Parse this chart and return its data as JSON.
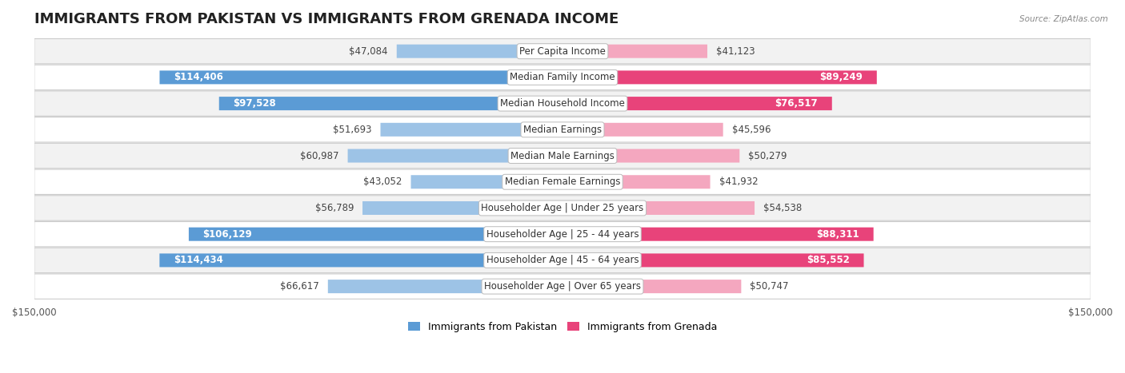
{
  "title": "IMMIGRANTS FROM PAKISTAN VS IMMIGRANTS FROM GRENADA INCOME",
  "source": "Source: ZipAtlas.com",
  "categories": [
    "Per Capita Income",
    "Median Family Income",
    "Median Household Income",
    "Median Earnings",
    "Median Male Earnings",
    "Median Female Earnings",
    "Householder Age | Under 25 years",
    "Householder Age | 25 - 44 years",
    "Householder Age | 45 - 64 years",
    "Householder Age | Over 65 years"
  ],
  "pakistan_values": [
    47084,
    114406,
    97528,
    51693,
    60987,
    43052,
    56789,
    106129,
    114434,
    66617
  ],
  "grenada_values": [
    41123,
    89249,
    76517,
    45596,
    50279,
    41932,
    54538,
    88311,
    85552,
    50747
  ],
  "pakistan_color_strong": "#5b9bd5",
  "pakistan_color_light": "#9dc3e6",
  "grenada_color_strong": "#e8437a",
  "grenada_color_light": "#f4a7bf",
  "pakistan_labels": [
    "$47,084",
    "$114,406",
    "$97,528",
    "$51,693",
    "$60,987",
    "$43,052",
    "$56,789",
    "$106,129",
    "$114,434",
    "$66,617"
  ],
  "grenada_labels": [
    "$41,123",
    "$89,249",
    "$76,517",
    "$45,596",
    "$50,279",
    "$41,932",
    "$54,538",
    "$88,311",
    "$85,552",
    "$50,747"
  ],
  "max_value": 150000,
  "legend_pakistan": "Immigrants from Pakistan",
  "legend_grenada": "Immigrants from Grenada",
  "background_color": "#ffffff",
  "row_bg_even": "#f2f2f2",
  "row_bg_odd": "#ffffff",
  "title_fontsize": 13,
  "label_fontsize": 8.5,
  "category_fontsize": 8.5,
  "pak_strong_threshold": 75000,
  "gren_strong_threshold": 75000
}
